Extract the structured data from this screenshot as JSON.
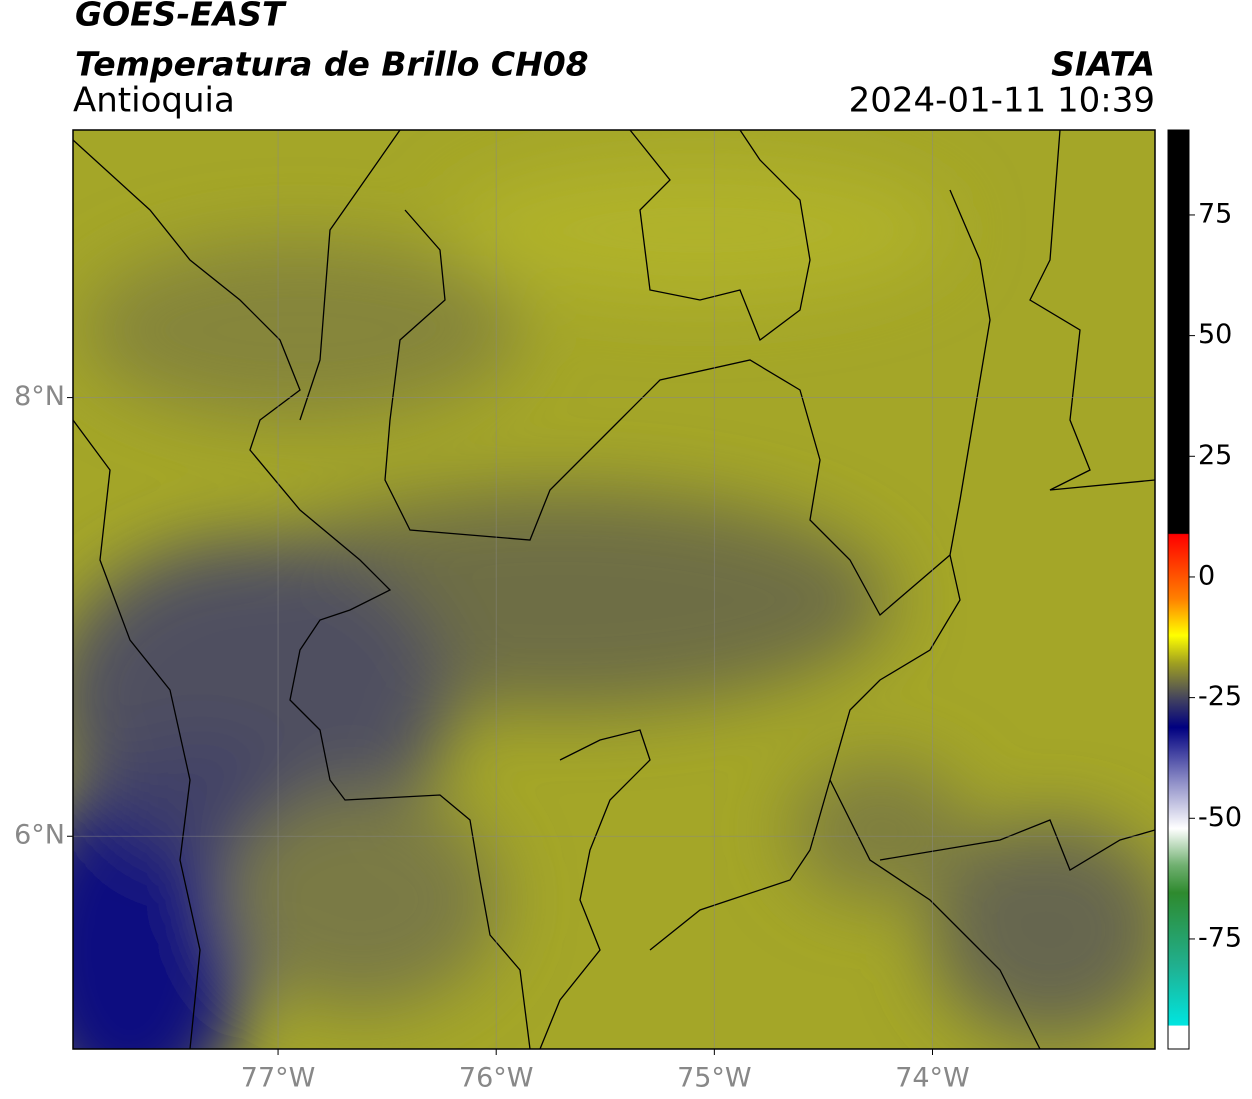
{
  "map": {
    "title": "GOES-EAST",
    "subtitle": "Temperatura de Brillo CH08",
    "region": "Antioquia",
    "source": "SIATA",
    "datetime": "2024-01-11 10:39",
    "xlim": [
      -77.94,
      -72.98
    ],
    "ylim": [
      5.03,
      9.22
    ],
    "xticks": [
      {
        "value": -77,
        "label": "77°W"
      },
      {
        "value": -76,
        "label": "76°W"
      },
      {
        "value": -75,
        "label": "75°W"
      },
      {
        "value": -74,
        "label": "74°W"
      }
    ],
    "yticks": [
      {
        "value": 8,
        "label": "8°N"
      },
      {
        "value": 6,
        "label": "6°N"
      }
    ],
    "grid": true,
    "colorbar": {
      "clim": [
        -97.8,
        92.6
      ],
      "ticks": [
        75,
        50,
        25,
        0,
        -25,
        -50,
        -75
      ]
    }
  }
}
